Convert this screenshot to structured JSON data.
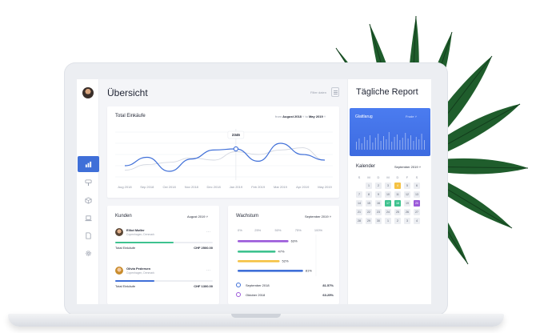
{
  "colors": {
    "accent_blue": "#3f6fd8",
    "green": "#3ec28f",
    "purple": "#9b59d9",
    "yellow": "#f5c244",
    "palm_green": "#1f5d2c"
  },
  "sidebar": {
    "items": [
      {
        "icon": "bar-chart-icon",
        "active": true
      },
      {
        "icon": "brush-icon",
        "active": false
      },
      {
        "icon": "box-icon",
        "active": false
      },
      {
        "icon": "laptop-icon",
        "active": false
      },
      {
        "icon": "document-icon",
        "active": false
      },
      {
        "icon": "gear-icon",
        "active": false
      }
    ]
  },
  "header": {
    "title": "Übersicht",
    "filter_label": "Filter daten"
  },
  "total_card": {
    "title": "Total Einkäufe",
    "range_from_label": "from",
    "range_from": "August 2018",
    "range_to_label": "to",
    "range_to": "May 2019",
    "tooltip": "2345"
  },
  "kunden": {
    "title": "Kunden",
    "period": "August 2019",
    "customers": [
      {
        "name": "Elliot Møller",
        "location": "Copenhagen, Denmark",
        "total_label": "Total Einkäufe",
        "amount": "CHF 2500.00",
        "progress": 0.6
      },
      {
        "name": "Olivia Pedersen",
        "location": "Copenhagen, Denmark",
        "total_label": "Total Einkäufe",
        "amount": "CHF 1300.00",
        "progress": 0.4
      }
    ]
  },
  "wachstum": {
    "title": "Wachstum",
    "period": "September 2019",
    "legend": [
      {
        "label": "September 2018",
        "value": "81.57%",
        "color": "#3f6fd8"
      },
      {
        "label": "Oktober 2018",
        "value": "63.25%",
        "color": "#9b59d9"
      }
    ]
  },
  "report": {
    "title": "Tägliche Report",
    "glatt_label": "Glattlarug",
    "glatt_select": "Frude"
  },
  "kalender": {
    "title": "Kalender",
    "period": "September 2019",
    "weekdays": [
      "S",
      "M",
      "D",
      "M",
      "D",
      "F",
      "S"
    ],
    "days": [
      [
        " ",
        "1",
        "2",
        "3",
        "4",
        "5",
        "6"
      ],
      [
        "7",
        "8",
        "9",
        "10",
        "11",
        "12",
        "13"
      ],
      [
        "14",
        "15",
        "16",
        "17",
        "18",
        "19",
        "20"
      ],
      [
        "21",
        "22",
        "23",
        "24",
        "25",
        "26",
        "27"
      ],
      [
        "28",
        "29",
        "30",
        "1",
        "2",
        "3",
        "4"
      ]
    ],
    "highlights": {
      "yellow": [
        "4"
      ],
      "green": [
        "17",
        "18"
      ],
      "purple": [
        "20"
      ]
    }
  },
  "chart_data": [
    {
      "type": "line",
      "title": "Total Einkäufe",
      "categories": [
        "Aug 2018",
        "Sep 2018",
        "Oct 2018",
        "Nov 2018",
        "Dec 2018",
        "Jan 2019",
        "Feb 2019",
        "Mar 2019",
        "Apr 2019",
        "May 2019"
      ],
      "series": [
        {
          "values": [
            20,
            35,
            10,
            32,
            48,
            50,
            28,
            60,
            40,
            30
          ]
        },
        {
          "values": [
            12,
            22,
            26,
            34,
            30,
            45,
            40,
            48,
            52,
            30
          ]
        }
      ],
      "ylim": [
        0,
        80
      ],
      "grid": true,
      "annotations": [
        {
          "category": "Jan 2019",
          "label": "2345"
        }
      ]
    },
    {
      "type": "bar",
      "orientation": "horizontal",
      "title": "Wachstum",
      "xticks": [
        "0%",
        "25%",
        "50%",
        "75%",
        "100%"
      ],
      "values": [
        63,
        47,
        52,
        81
      ],
      "labels": [
        "63%",
        "47%",
        "52%",
        "81%"
      ],
      "colors": [
        "#9b59d9",
        "#3ec28f",
        "#f5c244",
        "#3f6fd8"
      ],
      "xlim": [
        0,
        100
      ]
    }
  ]
}
